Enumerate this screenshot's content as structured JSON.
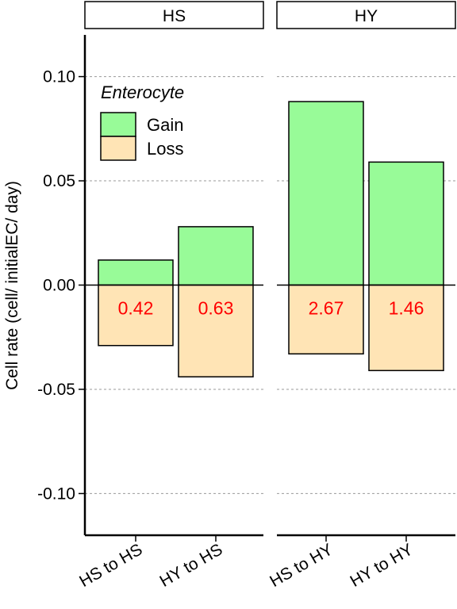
{
  "chart_data": {
    "type": "bar",
    "ylabel": "Cell rate (cell/ initialEC/ day)",
    "xlabel": "",
    "ylim": [
      -0.12,
      0.12
    ],
    "yticks": [
      "0.10",
      "0.05",
      "0.00",
      "-0.05",
      "-0.10"
    ],
    "ytick_values": [
      0.1,
      0.05,
      0.0,
      -0.05,
      -0.1
    ],
    "grid": "horizontal dashed",
    "legend": {
      "title": "Enterocyte",
      "placement": "top-left",
      "items": [
        {
          "label": "Gain",
          "color": "#98FB98"
        },
        {
          "label": "Loss",
          "color": "#FFE4B5"
        }
      ]
    },
    "facets": [
      {
        "label": "HS",
        "categories": [
          "HS to HS",
          "HY to HS"
        ],
        "series": [
          {
            "name": "Gain",
            "values": [
              0.012,
              0.028
            ]
          },
          {
            "name": "Loss",
            "values": [
              -0.029,
              -0.044
            ]
          }
        ],
        "annotations": [
          "0.42",
          "0.63"
        ]
      },
      {
        "label": "HY",
        "categories": [
          "HS to HY",
          "HY to HY"
        ],
        "series": [
          {
            "name": "Gain",
            "values": [
              0.088,
              0.059
            ]
          },
          {
            "name": "Loss",
            "values": [
              -0.033,
              -0.041
            ]
          }
        ],
        "annotations": [
          "2.67",
          "1.46"
        ]
      }
    ],
    "colors": {
      "gain": "#98FB98",
      "loss": "#FFE4B5",
      "annotation": "#FF0000"
    }
  }
}
